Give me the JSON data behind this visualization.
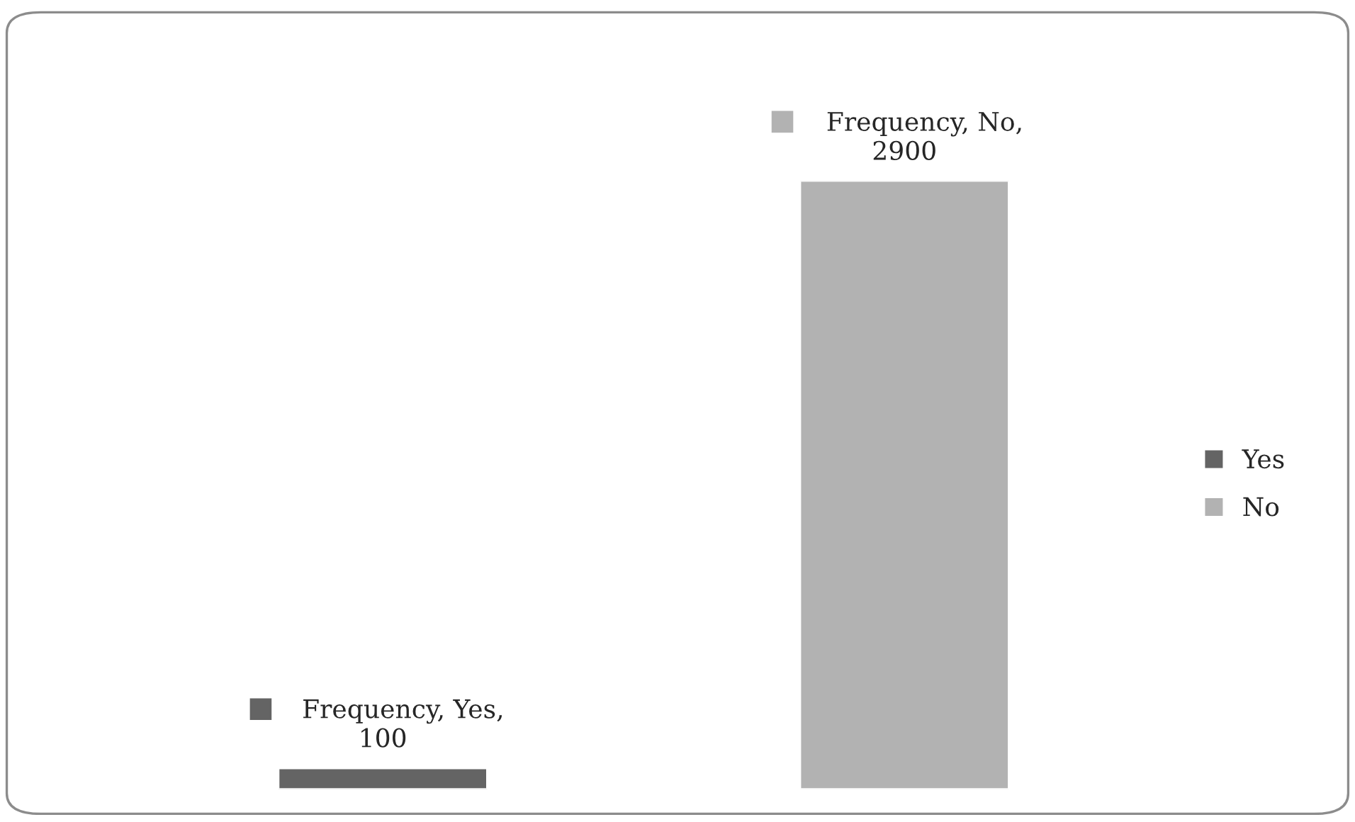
{
  "chart_data": {
    "type": "bar",
    "categories": [
      null,
      null
    ],
    "stacked": true,
    "legend": "right",
    "series": [
      {
        "name": "Yes",
        "color": "#646464",
        "values": [
          100,
          null
        ],
        "value_labels": [
          "Frequency, Yes, 100",
          null
        ]
      },
      {
        "name": "No",
        "color": "#b2b2b2",
        "values": [
          null,
          2900
        ],
        "value_labels": [
          null,
          "Frequency, No, 2900"
        ]
      }
    ]
  }
}
